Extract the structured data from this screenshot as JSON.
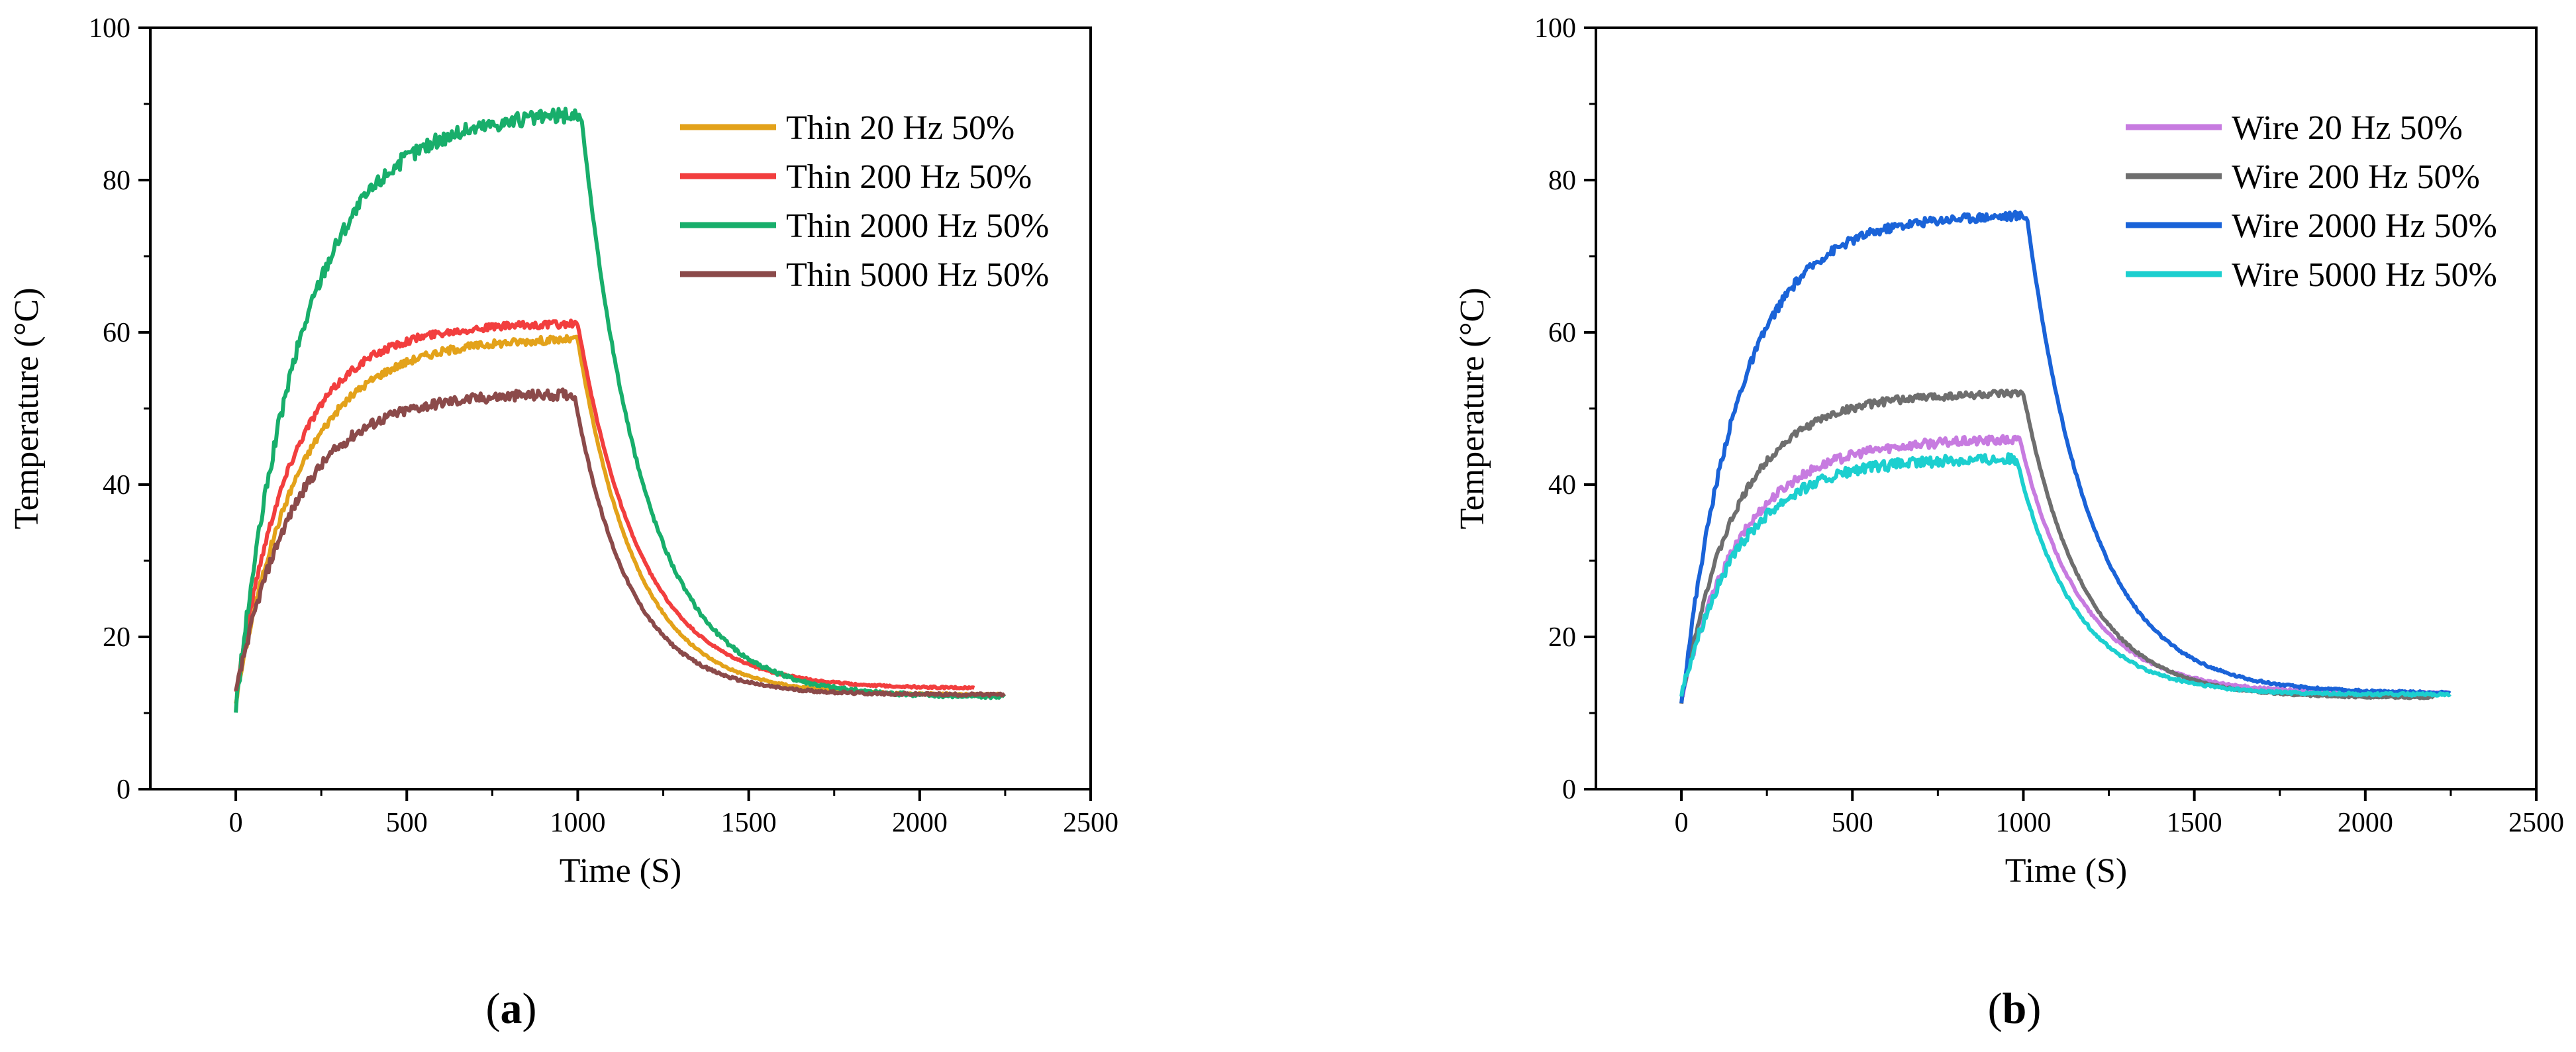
{
  "chart_data": [
    {
      "type": "line",
      "panel_label": {
        "open": "(",
        "letter": "a",
        "close": ")"
      },
      "xlabel": "Time (S)",
      "ylabel": "Temperature (°C)",
      "xlim": [
        -250,
        2500
      ],
      "ylim": [
        0,
        100
      ],
      "xticks": [
        0,
        500,
        1000,
        1500,
        2000,
        2500
      ],
      "yticks": [
        0,
        20,
        40,
        60,
        80,
        100
      ],
      "legend_position": "top-right",
      "series": [
        {
          "name": "Thin 20 Hz 50%",
          "color": "#E3A21A",
          "start": 11.5,
          "peak": 59.3,
          "tau_rise": 185,
          "heat_end": 1000,
          "end": 12.4,
          "tau_fall": 170,
          "end_time": 2250,
          "noise": 0.5
        },
        {
          "name": "Thin 200 Hz 50%",
          "color": "#F23E3E",
          "start": 12.5,
          "peak": 61.2,
          "tau_rise": 165,
          "heat_end": 1000,
          "end": 13.2,
          "tau_fall": 185,
          "end_time": 2160,
          "noise": 0.5
        },
        {
          "name": "Thin 2000 Hz 50%",
          "color": "#18AE6B",
          "start": 10.5,
          "peak": 89.0,
          "tau_rise": 195,
          "heat_end": 1010,
          "end": 12.1,
          "tau_fall": 180,
          "end_time": 2250,
          "noise": 1.0
        },
        {
          "name": "Thin 5000 Hz 50%",
          "color": "#8B4A4A",
          "start": 12.5,
          "peak": 52.0,
          "tau_rise": 175,
          "heat_end": 990,
          "end": 12.4,
          "tau_fall": 160,
          "end_time": 2250,
          "noise": 0.7
        }
      ]
    },
    {
      "type": "line",
      "panel_label": {
        "open": "(",
        "letter": "b",
        "close": ")"
      },
      "xlabel": "Time (S)",
      "ylabel": "Temperature (°C)",
      "xlim": [
        -250,
        2500
      ],
      "ylim": [
        0,
        100
      ],
      "xticks": [
        0,
        500,
        1000,
        1500,
        2000,
        2500
      ],
      "yticks": [
        0,
        20,
        40,
        60,
        80,
        100
      ],
      "legend_position": "top-right",
      "series": [
        {
          "name": "Wire 20 Hz 50%",
          "color": "#C77BE0",
          "start": 12.0,
          "peak": 46.0,
          "tau_rise": 180,
          "heat_end": 990,
          "end": 12.6,
          "tau_fall": 180,
          "end_time": 2250,
          "noise": 0.6
        },
        {
          "name": "Wire 200 Hz 50%",
          "color": "#6E6E6E",
          "start": 11.5,
          "peak": 52.0,
          "tau_rise": 165,
          "heat_end": 1000,
          "end": 12.0,
          "tau_fall": 175,
          "end_time": 2200,
          "noise": 0.5
        },
        {
          "name": "Wire 2000 Hz 50%",
          "color": "#1A63D8",
          "start": 11.0,
          "peak": 75.5,
          "tau_rise": 170,
          "heat_end": 1010,
          "end": 12.6,
          "tau_fall": 185,
          "end_time": 2250,
          "noise": 0.6
        },
        {
          "name": "Wire 5000 Hz 50%",
          "color": "#1CCFCF",
          "start": 12.5,
          "peak": 43.5,
          "tau_rise": 175,
          "heat_end": 980,
          "end": 12.4,
          "tau_fall": 170,
          "end_time": 2250,
          "noise": 0.7
        }
      ]
    }
  ]
}
